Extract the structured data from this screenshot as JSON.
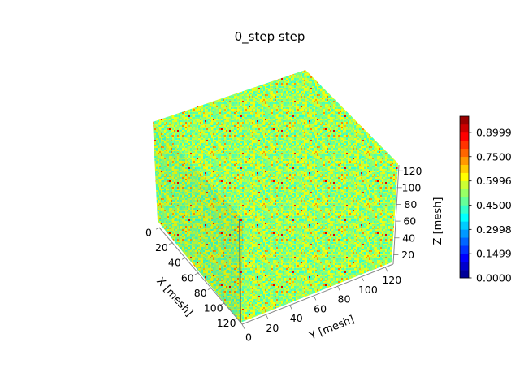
{
  "chart_data": {
    "type": "surface3d",
    "title": "0_step step",
    "xlabel": "X [mesh]",
    "ylabel": "Y [mesh]",
    "zlabel": "Z [mesh]",
    "x_ticks": [
      "0",
      "20",
      "40",
      "60",
      "80",
      "100",
      "120"
    ],
    "y_ticks": [
      "0",
      "20",
      "40",
      "60",
      "80",
      "100",
      "120"
    ],
    "z_ticks": [
      "20",
      "40",
      "60",
      "80",
      "100",
      "120"
    ],
    "xlim": [
      0,
      128
    ],
    "ylim": [
      0,
      128
    ],
    "zlim": [
      0,
      128
    ],
    "colorbar": {
      "colormap": "jet",
      "range": [
        0.0,
        1.0
      ],
      "levels": 20,
      "tick_labels": [
        "0.0000",
        "0.1499",
        "0.2998",
        "0.4500",
        "0.5996",
        "0.7500",
        "0.8999"
      ],
      "tick_values": [
        0.0,
        0.1499,
        0.2998,
        0.45,
        0.5996,
        0.75,
        0.8999
      ]
    },
    "field": {
      "description_values": "random field concentrated around 0.45–0.65",
      "dominant_colors": [
        "#c8ff37",
        "#99ff66",
        "#66ff99",
        "#f5ff2a",
        "#ffd000",
        "#ff5000"
      ]
    }
  }
}
